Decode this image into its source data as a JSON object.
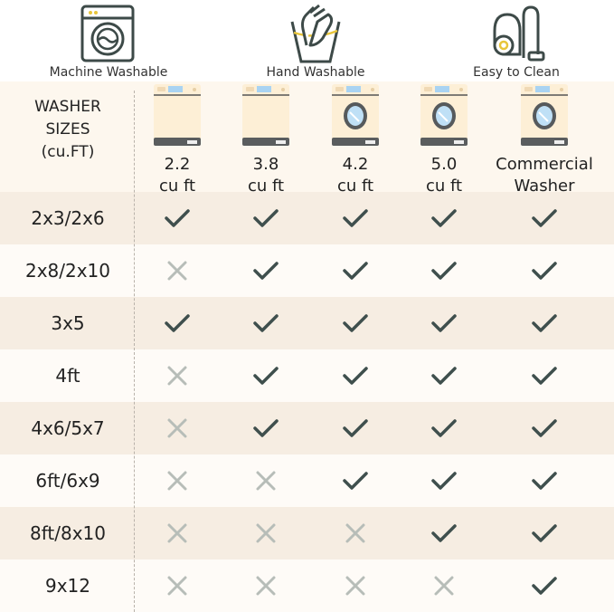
{
  "features": [
    {
      "icon": "washing-machine-icon",
      "label": "Machine Washable"
    },
    {
      "icon": "hand-wash-icon",
      "label": "Hand Washable"
    },
    {
      "icon": "vacuum-cleaner-icon",
      "label": "Easy to Clean"
    }
  ],
  "table": {
    "header": [
      "WASHER",
      "SIZES",
      "(cu.FT)"
    ],
    "columns": [
      {
        "line1": "2.2",
        "line2": "cu ft",
        "door": false
      },
      {
        "line1": "3.8",
        "line2": "cu ft",
        "door": false
      },
      {
        "line1": "4.2",
        "line2": "cu ft",
        "door": true
      },
      {
        "line1": "5.0",
        "line2": "cu ft",
        "door": true
      },
      {
        "line1": "Commercial",
        "line2": "Washer",
        "door": true
      }
    ],
    "rows": [
      {
        "size": "2x3/2x6",
        "fits": [
          true,
          true,
          true,
          true,
          true
        ]
      },
      {
        "size": "2x8/2x10",
        "fits": [
          false,
          true,
          true,
          true,
          true
        ]
      },
      {
        "size": "3x5",
        "fits": [
          true,
          true,
          true,
          true,
          true
        ]
      },
      {
        "size": "4ft",
        "fits": [
          false,
          true,
          true,
          true,
          true
        ]
      },
      {
        "size": "4x6/5x7",
        "fits": [
          false,
          true,
          true,
          true,
          true
        ]
      },
      {
        "size": "6ft/6x9",
        "fits": [
          false,
          false,
          true,
          true,
          true
        ]
      },
      {
        "size": "8ft/8x10",
        "fits": [
          false,
          false,
          false,
          true,
          true
        ]
      },
      {
        "size": "9x12",
        "fits": [
          false,
          false,
          false,
          false,
          true
        ]
      }
    ]
  },
  "colors": {
    "icon": "#3d4a48",
    "accent": "#e8c53a",
    "check": "#3f4f4d",
    "cross": "#b7bdb8",
    "row_dark": "#f6ede2",
    "row_light": "#fefbf7"
  }
}
